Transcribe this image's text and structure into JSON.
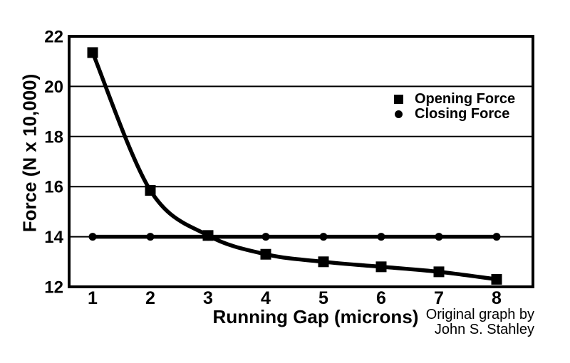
{
  "chart_data": {
    "type": "line",
    "title": "",
    "xlabel": "Running Gap (microns)",
    "ylabel": "Force (N x 10,000)",
    "x": [
      1,
      2,
      3,
      4,
      5,
      6,
      7,
      8
    ],
    "xticks": [
      1,
      2,
      3,
      4,
      5,
      6,
      7,
      8
    ],
    "yticks": [
      12,
      14,
      16,
      18,
      20,
      22
    ],
    "ylim": [
      12,
      22
    ],
    "grid": "horizontal",
    "legend_position": "inside-top-right",
    "line_color": "#000000",
    "background_color": "#ffffff",
    "series": [
      {
        "name": "Opening Force",
        "marker": "square",
        "smooth": true,
        "values": [
          21.35,
          15.85,
          14.05,
          13.3,
          13.0,
          12.8,
          12.6,
          12.3
        ]
      },
      {
        "name": "Closing Force",
        "marker": "circle",
        "smooth": false,
        "values": [
          14,
          14,
          14,
          14,
          14,
          14,
          14,
          14
        ]
      }
    ]
  },
  "attribution": {
    "line1": "Original graph by",
    "line2": "John S. Stahley"
  }
}
